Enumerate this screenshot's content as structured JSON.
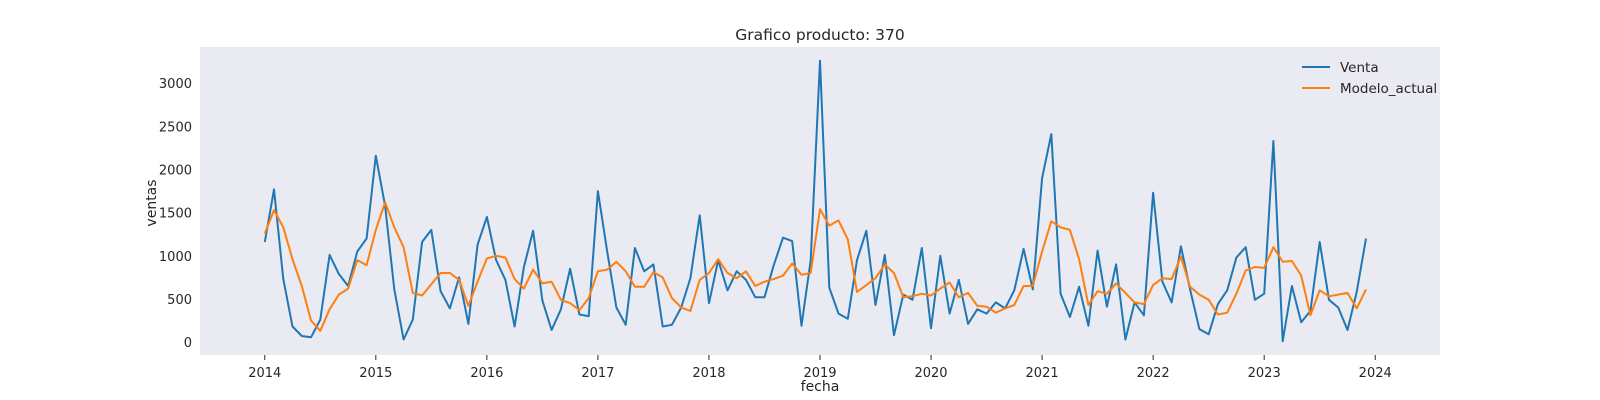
{
  "chart_data": {
    "type": "line",
    "title": "Grafico producto: 370",
    "xlabel": "fecha",
    "ylabel": "ventas",
    "x_axis": "monthly dates",
    "x_ticks": [
      "2014",
      "2015",
      "2016",
      "2017",
      "2018",
      "2019",
      "2020",
      "2021",
      "2022",
      "2023",
      "2024"
    ],
    "y_ticks": [
      0,
      500,
      1000,
      1500,
      2000,
      2500,
      3000
    ],
    "ylim": [
      -150,
      3420
    ],
    "xlim": [
      "2013-06",
      "2024-08"
    ],
    "grid": false,
    "background": "#eaeaf2",
    "legend": {
      "placement": "top-right",
      "entries": [
        "Venta",
        "Modelo_actual"
      ]
    },
    "x": [
      "2014-01",
      "2014-02",
      "2014-03",
      "2014-04",
      "2014-05",
      "2014-06",
      "2014-07",
      "2014-08",
      "2014-09",
      "2014-10",
      "2014-11",
      "2014-12",
      "2015-01",
      "2015-02",
      "2015-03",
      "2015-04",
      "2015-05",
      "2015-06",
      "2015-07",
      "2015-08",
      "2015-09",
      "2015-10",
      "2015-11",
      "2015-12",
      "2016-01",
      "2016-02",
      "2016-03",
      "2016-04",
      "2016-05",
      "2016-06",
      "2016-07",
      "2016-08",
      "2016-09",
      "2016-10",
      "2016-11",
      "2016-12",
      "2017-01",
      "2017-02",
      "2017-03",
      "2017-04",
      "2017-05",
      "2017-06",
      "2017-07",
      "2017-08",
      "2017-09",
      "2017-10",
      "2017-11",
      "2017-12",
      "2018-01",
      "2018-02",
      "2018-03",
      "2018-04",
      "2018-05",
      "2018-06",
      "2018-07",
      "2018-08",
      "2018-09",
      "2018-10",
      "2018-11",
      "2018-12",
      "2019-01",
      "2019-02",
      "2019-03",
      "2019-04",
      "2019-05",
      "2019-06",
      "2019-07",
      "2019-08",
      "2019-09",
      "2019-10",
      "2019-11",
      "2019-12",
      "2020-01",
      "2020-02",
      "2020-03",
      "2020-04",
      "2020-05",
      "2020-06",
      "2020-07",
      "2020-08",
      "2020-09",
      "2020-10",
      "2020-11",
      "2020-12",
      "2021-01",
      "2021-02",
      "2021-03",
      "2021-04",
      "2021-05",
      "2021-06",
      "2021-07",
      "2021-08",
      "2021-09",
      "2021-10",
      "2021-11",
      "2021-12",
      "2022-01",
      "2022-02",
      "2022-03",
      "2022-04",
      "2022-05",
      "2022-06",
      "2022-07",
      "2022-08",
      "2022-09",
      "2022-10",
      "2022-11",
      "2022-12",
      "2023-01",
      "2023-02",
      "2023-03",
      "2023-04",
      "2023-05",
      "2023-06",
      "2023-07",
      "2023-08",
      "2023-09",
      "2023-10",
      "2023-11",
      "2023-12"
    ],
    "series": [
      {
        "name": "Venta",
        "color": "#1f77b4",
        "values": [
          1160,
          1770,
          730,
          180,
          70,
          55,
          260,
          1010,
          790,
          650,
          1050,
          1200,
          2160,
          1580,
          610,
          30,
          260,
          1160,
          1300,
          590,
          390,
          750,
          210,
          1130,
          1450,
          950,
          720,
          180,
          870,
          1290,
          480,
          140,
          380,
          850,
          320,
          300,
          1750,
          1050,
          400,
          200,
          1090,
          820,
          900,
          180,
          200,
          400,
          740,
          1470,
          450,
          950,
          600,
          820,
          720,
          520,
          520,
          890,
          1210,
          1170,
          190,
          950,
          3260,
          630,
          330,
          270,
          950,
          1290,
          430,
          1010,
          80,
          550,
          490,
          1090,
          160,
          1000,
          330,
          720,
          210,
          380,
          330,
          460,
          390,
          600,
          1080,
          610,
          1900,
          2410,
          560,
          290,
          640,
          190,
          1060,
          410,
          900,
          30,
          460,
          310,
          1730,
          700,
          460,
          1110,
          610,
          150,
          90,
          440,
          600,
          980,
          1100,
          490,
          560,
          2330,
          10,
          650,
          230,
          360,
          1160,
          490,
          400,
          140,
          580,
          1200
        ]
      },
      {
        "name": "Modelo_actual",
        "color": "#ff7f0e",
        "values": [
          1260,
          1530,
          1330,
          960,
          650,
          250,
          130,
          380,
          550,
          620,
          950,
          890,
          1300,
          1620,
          1330,
          1100,
          570,
          540,
          670,
          800,
          800,
          720,
          420,
          700,
          970,
          1000,
          980,
          730,
          620,
          840,
          680,
          700,
          490,
          450,
          370,
          510,
          820,
          840,
          930,
          820,
          640,
          640,
          810,
          750,
          510,
          400,
          360,
          720,
          800,
          960,
          800,
          740,
          820,
          650,
          700,
          730,
          770,
          910,
          780,
          800,
          1540,
          1350,
          1410,
          1190,
          580,
          660,
          740,
          900,
          800,
          520,
          530,
          560,
          540,
          620,
          690,
          520,
          570,
          420,
          410,
          340,
          390,
          430,
          650,
          650,
          1050,
          1400,
          1330,
          1300,
          960,
          430,
          590,
          560,
          680,
          570,
          460,
          440,
          660,
          740,
          730,
          990,
          640,
          550,
          490,
          320,
          340,
          560,
          830,
          870,
          860,
          1100,
          930,
          940,
          770,
          310,
          600,
          530,
          550,
          570,
          390,
          610
        ]
      }
    ]
  }
}
